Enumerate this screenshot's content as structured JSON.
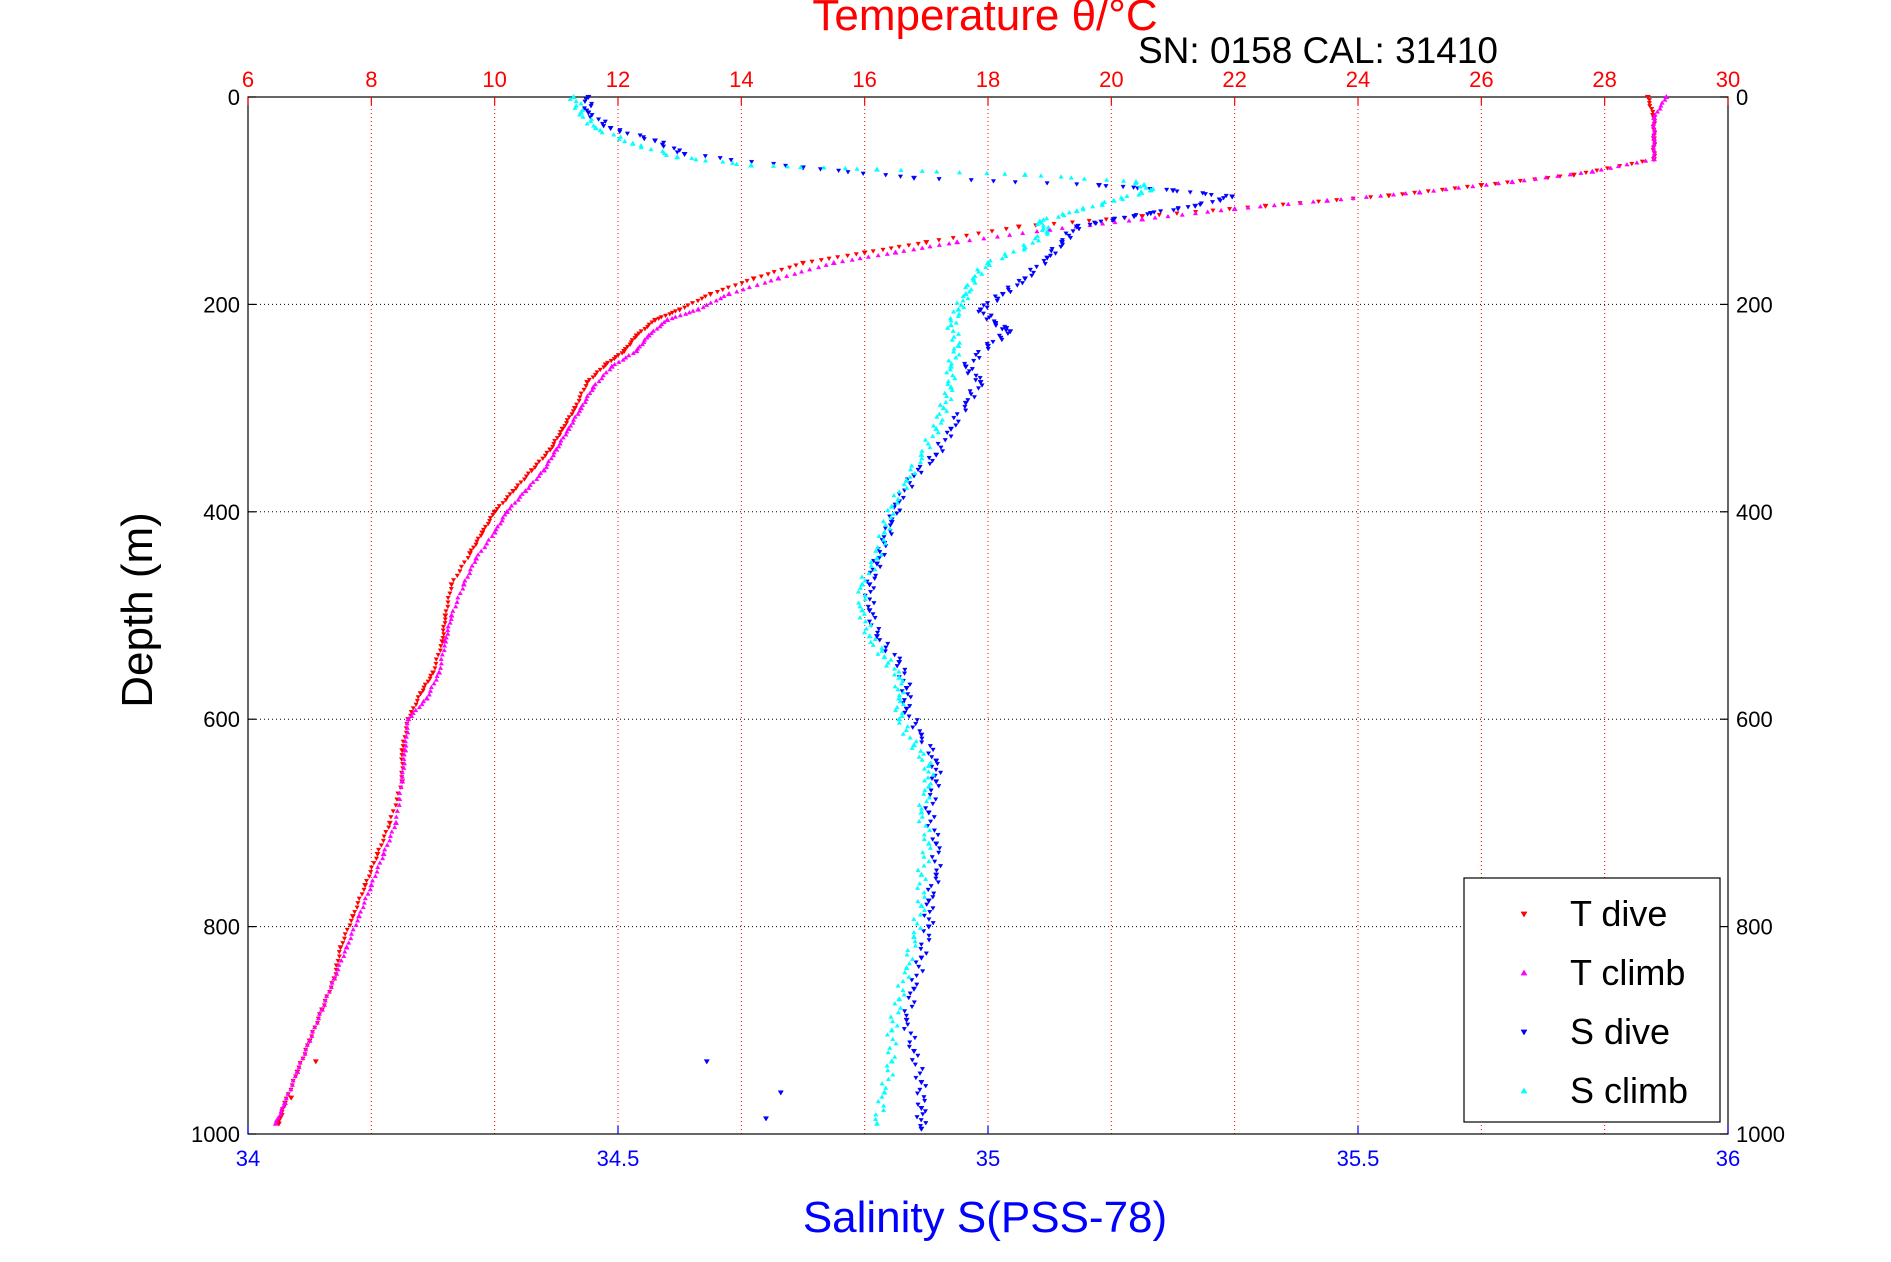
{
  "chart_data": {
    "type": "scatter",
    "title": "Temperature θ/°C",
    "annotation": "SN: 0158  CAL: 31410",
    "xlabel_bottom": "Salinity S(PSS-78)",
    "ylabel": "Depth (m)",
    "temperature_axis": {
      "range": [
        6,
        30
      ],
      "ticks": [
        "6",
        "8",
        "10",
        "12",
        "14",
        "16",
        "18",
        "20",
        "22",
        "24",
        "26",
        "28",
        "30"
      ],
      "position": "top",
      "grid": true,
      "color": "#ff0000"
    },
    "salinity_axis": {
      "range": [
        34,
        36
      ],
      "ticks": [
        "34",
        "34.5",
        "35",
        "35.5",
        "36"
      ],
      "position": "bottom",
      "grid": false,
      "color": "#0000ff"
    },
    "depth_axis": {
      "range": [
        0,
        1000
      ],
      "reversed": true,
      "ticks": [
        "0",
        "200",
        "400",
        "600",
        "800",
        "1000"
      ],
      "grid": true
    },
    "legend": {
      "placement": "bottom-right",
      "entries": [
        "T dive",
        "T climb",
        "S dive",
        "S climb"
      ]
    },
    "series": [
      {
        "name": "T dive",
        "axis": "temperature",
        "color": "#ff0000",
        "marker": "triangle-down",
        "points": [
          [
            28.7,
            0
          ],
          [
            28.8,
            20
          ],
          [
            28.8,
            40
          ],
          [
            28.8,
            60
          ],
          [
            27.5,
            75
          ],
          [
            26.0,
            85
          ],
          [
            24.5,
            95
          ],
          [
            22.5,
            105
          ],
          [
            20.5,
            115
          ],
          [
            18.5,
            125
          ],
          [
            17.0,
            140
          ],
          [
            16.0,
            150
          ],
          [
            15.0,
            160
          ],
          [
            14.2,
            175
          ],
          [
            13.5,
            190
          ],
          [
            13.0,
            205
          ],
          [
            12.6,
            215
          ],
          [
            12.3,
            230
          ],
          [
            12.1,
            245
          ],
          [
            11.8,
            258
          ],
          [
            11.5,
            275
          ],
          [
            11.3,
            300
          ],
          [
            11.1,
            320
          ],
          [
            10.9,
            340
          ],
          [
            10.6,
            360
          ],
          [
            10.3,
            380
          ],
          [
            10.0,
            400
          ],
          [
            9.8,
            420
          ],
          [
            9.6,
            440
          ],
          [
            9.3,
            470
          ],
          [
            9.2,
            500
          ],
          [
            9.15,
            525
          ],
          [
            9.0,
            555
          ],
          [
            8.8,
            575
          ],
          [
            8.6,
            600
          ],
          [
            8.5,
            630
          ],
          [
            8.5,
            660
          ],
          [
            8.3,
            700
          ],
          [
            8.1,
            730
          ],
          [
            7.9,
            760
          ],
          [
            7.7,
            790
          ],
          [
            7.5,
            820
          ],
          [
            7.4,
            850
          ],
          [
            7.2,
            880
          ],
          [
            7.0,
            910
          ],
          [
            6.8,
            940
          ],
          [
            6.6,
            970
          ],
          [
            6.5,
            990
          ]
        ]
      },
      {
        "name": "T climb",
        "axis": "temperature",
        "color": "#ff00ff",
        "marker": "triangle-up",
        "points": [
          [
            29.0,
            0
          ],
          [
            28.8,
            20
          ],
          [
            28.8,
            40
          ],
          [
            28.8,
            60
          ],
          [
            27.8,
            72
          ],
          [
            26.5,
            82
          ],
          [
            25.0,
            92
          ],
          [
            23.5,
            100
          ],
          [
            22.0,
            108
          ],
          [
            20.5,
            118
          ],
          [
            19.0,
            128
          ],
          [
            17.5,
            140
          ],
          [
            16.5,
            150
          ],
          [
            15.5,
            160
          ],
          [
            14.6,
            175
          ],
          [
            13.8,
            190
          ],
          [
            13.3,
            205
          ],
          [
            12.8,
            215
          ],
          [
            12.5,
            230
          ],
          [
            12.3,
            245
          ],
          [
            11.9,
            260
          ],
          [
            11.6,
            280
          ],
          [
            11.4,
            300
          ],
          [
            11.2,
            320
          ],
          [
            11.0,
            340
          ],
          [
            10.8,
            360
          ],
          [
            10.5,
            380
          ],
          [
            10.2,
            400
          ],
          [
            10.0,
            420
          ],
          [
            9.7,
            445
          ],
          [
            9.5,
            470
          ],
          [
            9.3,
            500
          ],
          [
            9.2,
            525
          ],
          [
            9.1,
            555
          ],
          [
            8.9,
            580
          ],
          [
            8.6,
            600
          ],
          [
            8.55,
            630
          ],
          [
            8.5,
            660
          ],
          [
            8.4,
            700
          ],
          [
            8.2,
            730
          ],
          [
            8.0,
            760
          ],
          [
            7.8,
            790
          ],
          [
            7.6,
            820
          ],
          [
            7.4,
            850
          ],
          [
            7.2,
            880
          ],
          [
            7.0,
            910
          ],
          [
            6.8,
            940
          ],
          [
            6.6,
            970
          ],
          [
            6.45,
            990
          ]
        ]
      },
      {
        "name": "S dive",
        "axis": "salinity",
        "color": "#0000ff",
        "marker": "triangle-down",
        "points": [
          [
            34.46,
            0
          ],
          [
            34.46,
            15
          ],
          [
            34.49,
            30
          ],
          [
            34.55,
            42
          ],
          [
            34.59,
            55
          ],
          [
            34.75,
            68
          ],
          [
            34.9,
            78
          ],
          [
            35.15,
            85
          ],
          [
            35.25,
            90
          ],
          [
            35.33,
            96
          ],
          [
            35.28,
            105
          ],
          [
            35.22,
            112
          ],
          [
            35.17,
            118
          ],
          [
            35.12,
            125
          ],
          [
            35.1,
            140
          ],
          [
            35.08,
            155
          ],
          [
            35.05,
            175
          ],
          [
            35.02,
            190
          ],
          [
            34.99,
            205
          ],
          [
            35.01,
            218
          ],
          [
            35.03,
            226
          ],
          [
            35.0,
            240
          ],
          [
            34.97,
            260
          ],
          [
            34.99,
            275
          ],
          [
            34.97,
            295
          ],
          [
            34.95,
            320
          ],
          [
            34.93,
            345
          ],
          [
            34.9,
            365
          ],
          [
            34.88,
            390
          ],
          [
            34.87,
            410
          ],
          [
            34.86,
            430
          ],
          [
            34.85,
            450
          ],
          [
            34.84,
            470
          ],
          [
            34.84,
            495
          ],
          [
            34.85,
            520
          ],
          [
            34.88,
            545
          ],
          [
            34.89,
            570
          ],
          [
            34.89,
            590
          ],
          [
            34.91,
            615
          ],
          [
            34.93,
            640
          ],
          [
            34.93,
            660
          ],
          [
            34.92,
            690
          ],
          [
            34.93,
            720
          ],
          [
            34.93,
            750
          ],
          [
            34.92,
            775
          ],
          [
            34.92,
            800
          ],
          [
            34.91,
            830
          ],
          [
            34.9,
            860
          ],
          [
            34.89,
            890
          ],
          [
            34.9,
            920
          ],
          [
            34.91,
            950
          ],
          [
            34.91,
            975
          ],
          [
            34.91,
            995
          ]
        ]
      },
      {
        "name": "S climb",
        "axis": "salinity",
        "color": "#00ffff",
        "marker": "triangle-up",
        "points": [
          [
            34.44,
            0
          ],
          [
            34.45,
            15
          ],
          [
            34.47,
            30
          ],
          [
            34.52,
            45
          ],
          [
            34.58,
            58
          ],
          [
            34.68,
            66
          ],
          [
            34.85,
            70
          ],
          [
            35.05,
            75
          ],
          [
            35.2,
            82
          ],
          [
            35.22,
            90
          ],
          [
            35.17,
            100
          ],
          [
            35.12,
            110
          ],
          [
            35.07,
            120
          ],
          [
            35.08,
            130
          ],
          [
            35.05,
            145
          ],
          [
            35.0,
            160
          ],
          [
            34.98,
            175
          ],
          [
            34.97,
            190
          ],
          [
            34.96,
            205
          ],
          [
            34.95,
            220
          ],
          [
            34.96,
            240
          ],
          [
            34.95,
            260
          ],
          [
            34.95,
            280
          ],
          [
            34.94,
            300
          ],
          [
            34.93,
            320
          ],
          [
            34.91,
            345
          ],
          [
            34.89,
            370
          ],
          [
            34.87,
            395
          ],
          [
            34.86,
            420
          ],
          [
            34.85,
            445
          ],
          [
            34.83,
            470
          ],
          [
            34.83,
            495
          ],
          [
            34.84,
            520
          ],
          [
            34.86,
            540
          ],
          [
            34.88,
            560
          ],
          [
            34.88,
            580
          ],
          [
            34.88,
            600
          ],
          [
            34.9,
            625
          ],
          [
            34.92,
            645
          ],
          [
            34.92,
            665
          ],
          [
            34.91,
            690
          ],
          [
            34.92,
            720
          ],
          [
            34.91,
            750
          ],
          [
            34.91,
            780
          ],
          [
            34.9,
            810
          ],
          [
            34.89,
            840
          ],
          [
            34.88,
            870
          ],
          [
            34.87,
            900
          ],
          [
            34.87,
            930
          ],
          [
            34.86,
            960
          ],
          [
            34.85,
            990
          ]
        ]
      }
    ],
    "outliers": [
      {
        "series": "S dive",
        "points": [
          [
            34.62,
            930
          ],
          [
            34.72,
            960
          ],
          [
            34.7,
            985
          ]
        ]
      },
      {
        "series": "T dive",
        "points": [
          [
            7.1,
            930
          ],
          [
            6.7,
            965
          ]
        ]
      }
    ]
  }
}
